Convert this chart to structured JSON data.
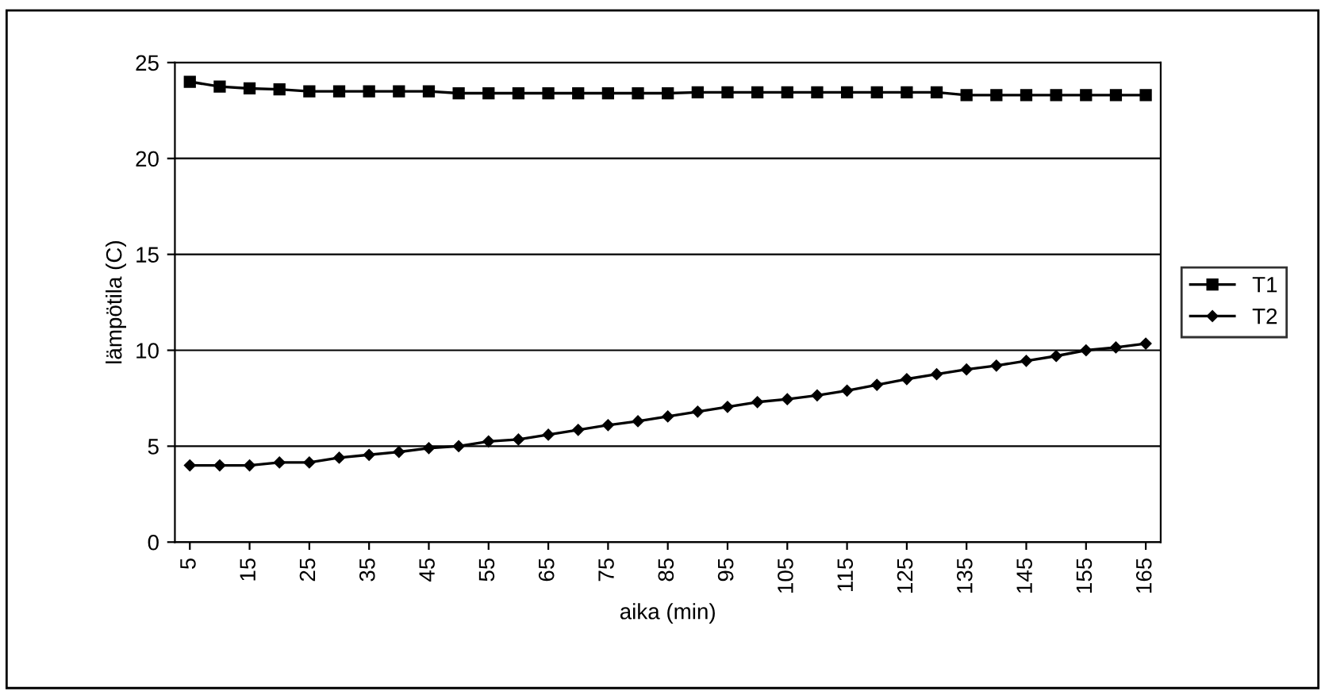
{
  "chart_data": {
    "type": "line",
    "xlabel": "aika (min)",
    "ylabel": "lämpötila (C)",
    "x": [
      5,
      10,
      15,
      20,
      25,
      30,
      35,
      40,
      45,
      50,
      55,
      60,
      65,
      70,
      75,
      80,
      85,
      90,
      95,
      100,
      105,
      110,
      115,
      120,
      125,
      130,
      135,
      140,
      145,
      150,
      155,
      160,
      165
    ],
    "xlim": [
      2.5,
      167.5
    ],
    "xticks": [
      5,
      15,
      25,
      35,
      45,
      55,
      65,
      75,
      85,
      95,
      105,
      115,
      125,
      135,
      145,
      155,
      165
    ],
    "ylim": [
      0,
      25
    ],
    "yticks": [
      0,
      5,
      10,
      15,
      20,
      25
    ],
    "grid": "y",
    "legend": "right",
    "line_style": "solid",
    "series": [
      {
        "name": "T1",
        "color": "#000000",
        "marker": "square",
        "values": [
          24.0,
          23.75,
          23.65,
          23.6,
          23.5,
          23.5,
          23.5,
          23.5,
          23.5,
          23.4,
          23.4,
          23.4,
          23.4,
          23.4,
          23.4,
          23.4,
          23.4,
          23.45,
          23.45,
          23.45,
          23.45,
          23.45,
          23.45,
          23.45,
          23.45,
          23.45,
          23.3,
          23.3,
          23.3,
          23.3,
          23.3,
          23.3,
          23.3
        ]
      },
      {
        "name": "T2",
        "color": "#000000",
        "marker": "diamond",
        "values": [
          4.0,
          4.0,
          4.0,
          4.15,
          4.15,
          4.4,
          4.55,
          4.7,
          4.9,
          5.0,
          5.25,
          5.35,
          5.6,
          5.85,
          6.1,
          6.3,
          6.55,
          6.8,
          7.05,
          7.3,
          7.45,
          7.65,
          7.9,
          8.2,
          8.5,
          8.75,
          9.0,
          9.2,
          9.45,
          9.7,
          10.0,
          10.15,
          10.35
        ]
      }
    ]
  }
}
